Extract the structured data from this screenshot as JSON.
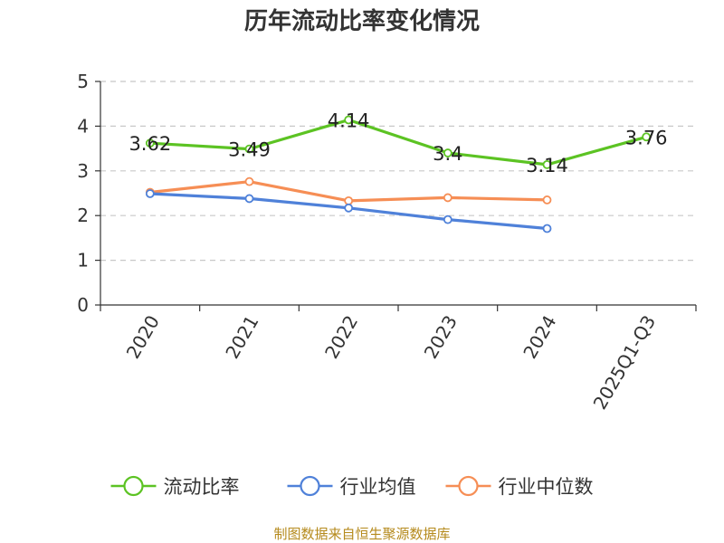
{
  "chart_data": {
    "type": "line",
    "title": "历年流动比率变化情况",
    "categories": [
      "2020",
      "2021",
      "2022",
      "2023",
      "2024",
      "2025Q1-Q3"
    ],
    "ylim": [
      0,
      5
    ],
    "yticks": [
      0,
      1,
      2,
      3,
      4,
      5
    ],
    "grid": true,
    "legend_position": "bottom",
    "series": [
      {
        "name": "流动比率",
        "color": "#5cc323",
        "values": [
          3.62,
          3.49,
          4.14,
          3.4,
          3.14,
          3.76
        ],
        "data_labels": [
          "3.62",
          "3.49",
          "4.14",
          "3.4",
          "3.14",
          "3.76"
        ]
      },
      {
        "name": "行业均值",
        "color": "#4f81d9",
        "values": [
          2.49,
          2.38,
          2.17,
          1.91,
          1.71,
          null
        ]
      },
      {
        "name": "行业中位数",
        "color": "#f68e55",
        "values": [
          2.52,
          2.76,
          2.33,
          2.4,
          2.35,
          null
        ]
      }
    ]
  },
  "source": "制图数据来自恒生聚源数据库"
}
